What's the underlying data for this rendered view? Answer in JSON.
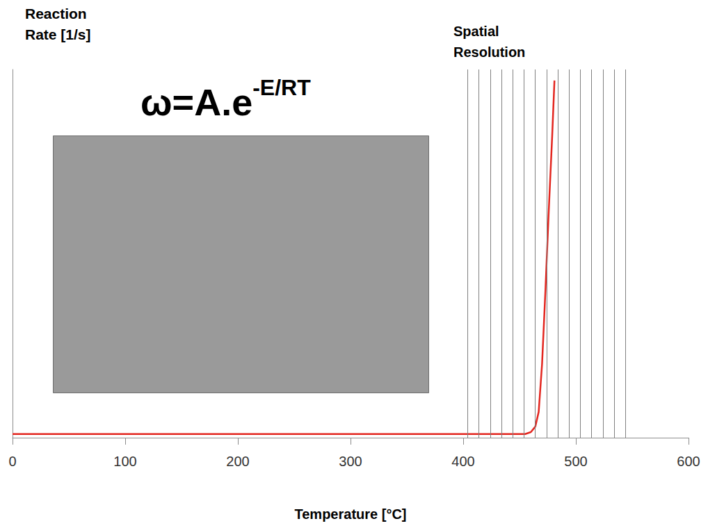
{
  "chart_data": {
    "type": "line",
    "x_label": "Temperature [°C]",
    "y_label": "Reaction Rate [1/s]",
    "equation": {
      "base": "ω=A.e",
      "exponent": "-E/RT"
    },
    "spatial_resolution_label": "Spatial Resolution",
    "spatial_resolution_lines": [
      404,
      414,
      424,
      434,
      444,
      454,
      464,
      474,
      484,
      494,
      504,
      514,
      524,
      534,
      544
    ],
    "x": [
      0,
      100,
      200,
      300,
      400,
      450,
      455,
      460,
      464,
      467,
      470,
      473,
      476,
      479,
      481
    ],
    "values": [
      1,
      1,
      1,
      1,
      1,
      1,
      1,
      1.5,
      3,
      7,
      20,
      40,
      62,
      82,
      97
    ],
    "color": "#e3261f",
    "xlim": [
      0,
      600
    ],
    "xticks": [
      0,
      100,
      200,
      300,
      400,
      500,
      600
    ],
    "ylim": [
      0,
      100
    ],
    "grid": false,
    "tick_labels": "x"
  }
}
